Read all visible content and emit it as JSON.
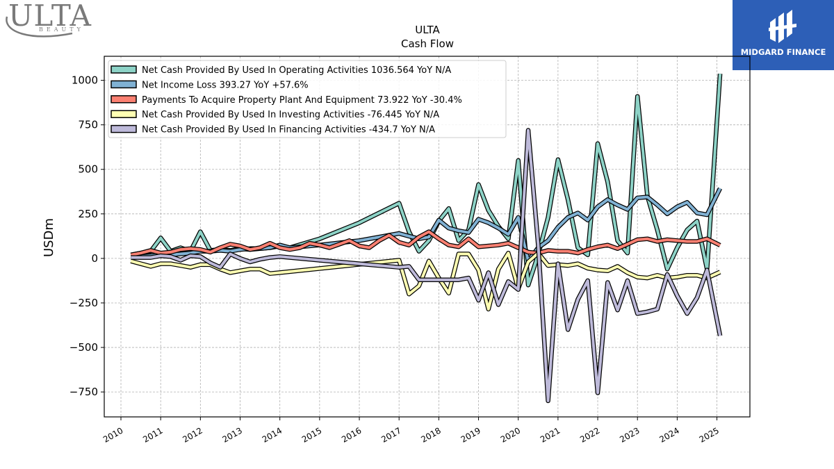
{
  "logos": {
    "left_brand": "ULTA",
    "left_brand_sub": "BEAUTY",
    "right_brand": "MIDGARD FINANCE"
  },
  "colors": {
    "operating": "#8dd3c7",
    "net_income": "#80b1d3",
    "capex": "#fb8072",
    "investing": "#ffffb3",
    "financing": "#bebada",
    "brand_blue": "#2d5fb7"
  },
  "chart_data": {
    "type": "line",
    "title": "ULTA",
    "subtitle": "Cash Flow",
    "xlabel": "",
    "ylabel": "USDm",
    "xlim": [
      2009.58,
      2025.83
    ],
    "ylim": [
      -890,
      1135
    ],
    "yticks": [
      -750,
      -500,
      -250,
      0,
      250,
      500,
      750,
      1000
    ],
    "ytick_labels": [
      "−750",
      "−500",
      "−250",
      "0",
      "250",
      "500",
      "750",
      "1000"
    ],
    "xticks": [
      2010,
      2011,
      2012,
      2013,
      2014,
      2015,
      2016,
      2017,
      2018,
      2019,
      2020,
      2021,
      2022,
      2023,
      2024,
      2025
    ],
    "grid": true,
    "legend_position": "upper-left",
    "series": [
      {
        "name": "Net Cash Provided By Used In Operating Activities  1036.564 YoY N/A",
        "color": "#8dd3c7",
        "points": [
          [
            2010.25,
            20
          ],
          [
            2010.5,
            30
          ],
          [
            2010.75,
            40
          ],
          [
            2011.0,
            115
          ],
          [
            2011.25,
            40
          ],
          [
            2011.5,
            60
          ],
          [
            2011.75,
            40
          ],
          [
            2012.0,
            150
          ],
          [
            2012.25,
            45
          ],
          [
            2012.5,
            50
          ],
          [
            2012.75,
            45
          ],
          [
            2013.0,
            55
          ],
          [
            2013.25,
            50
          ],
          [
            2013.5,
            55
          ],
          [
            2013.75,
            60
          ],
          [
            2014.0,
            70
          ],
          [
            2014.25,
            60
          ],
          [
            2015.0,
            110
          ],
          [
            2016.0,
            200
          ],
          [
            2017.0,
            310
          ],
          [
            2017.25,
            150
          ],
          [
            2017.5,
            40
          ],
          [
            2017.75,
            100
          ],
          [
            2018.0,
            210
          ],
          [
            2018.25,
            280
          ],
          [
            2018.5,
            100
          ],
          [
            2018.75,
            160
          ],
          [
            2019.0,
            415
          ],
          [
            2019.25,
            270
          ],
          [
            2019.5,
            180
          ],
          [
            2019.75,
            110
          ],
          [
            2020.0,
            550
          ],
          [
            2020.25,
            -150
          ],
          [
            2020.5,
            20
          ],
          [
            2020.75,
            230
          ],
          [
            2021.0,
            555
          ],
          [
            2021.25,
            330
          ],
          [
            2021.5,
            60
          ],
          [
            2021.75,
            20
          ],
          [
            2022.0,
            645
          ],
          [
            2022.25,
            430
          ],
          [
            2022.5,
            100
          ],
          [
            2022.75,
            30
          ],
          [
            2023.0,
            910
          ],
          [
            2023.25,
            350
          ],
          [
            2023.5,
            160
          ],
          [
            2023.75,
            -60
          ],
          [
            2024.0,
            60
          ],
          [
            2024.25,
            160
          ],
          [
            2024.5,
            210
          ],
          [
            2024.75,
            -60
          ],
          [
            2025.08,
            1036.564
          ]
        ]
      },
      {
        "name": "Net Income Loss  393.27 YoY +57.6%",
        "color": "#80b1d3",
        "points": [
          [
            2010.25,
            15
          ],
          [
            2010.5,
            10
          ],
          [
            2010.75,
            15
          ],
          [
            2011.0,
            20
          ],
          [
            2011.25,
            20
          ],
          [
            2011.5,
            25
          ],
          [
            2011.75,
            30
          ],
          [
            2012.0,
            40
          ],
          [
            2012.25,
            40
          ],
          [
            2012.5,
            45
          ],
          [
            2012.75,
            40
          ],
          [
            2013.0,
            50
          ],
          [
            2013.25,
            55
          ],
          [
            2013.5,
            55
          ],
          [
            2013.75,
            60
          ],
          [
            2014.0,
            75
          ],
          [
            2014.25,
            60
          ],
          [
            2015.0,
            75
          ],
          [
            2016.0,
            100
          ],
          [
            2017.0,
            140
          ],
          [
            2017.25,
            125
          ],
          [
            2017.5,
            110
          ],
          [
            2017.75,
            120
          ],
          [
            2018.0,
            215
          ],
          [
            2018.25,
            170
          ],
          [
            2018.5,
            155
          ],
          [
            2018.75,
            145
          ],
          [
            2019.0,
            220
          ],
          [
            2019.25,
            200
          ],
          [
            2019.5,
            170
          ],
          [
            2019.75,
            135
          ],
          [
            2020.0,
            230
          ],
          [
            2020.25,
            -15
          ],
          [
            2020.5,
            60
          ],
          [
            2020.75,
            100
          ],
          [
            2021.0,
            175
          ],
          [
            2021.25,
            230
          ],
          [
            2021.5,
            255
          ],
          [
            2021.75,
            215
          ],
          [
            2022.0,
            290
          ],
          [
            2022.25,
            330
          ],
          [
            2022.5,
            300
          ],
          [
            2022.75,
            275
          ],
          [
            2023.0,
            340
          ],
          [
            2023.25,
            345
          ],
          [
            2023.5,
            300
          ],
          [
            2023.75,
            250
          ],
          [
            2024.0,
            290
          ],
          [
            2024.25,
            315
          ],
          [
            2024.5,
            255
          ],
          [
            2024.75,
            245
          ],
          [
            2025.08,
            393.27
          ]
        ]
      },
      {
        "name": "Payments To Acquire Property Plant And Equipment  73.922 YoY -30.4%",
        "color": "#fb8072",
        "points": [
          [
            2010.25,
            20
          ],
          [
            2010.5,
            30
          ],
          [
            2010.75,
            45
          ],
          [
            2011.0,
            30
          ],
          [
            2011.25,
            35
          ],
          [
            2011.5,
            50
          ],
          [
            2011.75,
            55
          ],
          [
            2012.0,
            50
          ],
          [
            2012.25,
            35
          ],
          [
            2012.5,
            60
          ],
          [
            2012.75,
            80
          ],
          [
            2013.0,
            70
          ],
          [
            2013.25,
            50
          ],
          [
            2013.5,
            60
          ],
          [
            2013.75,
            85
          ],
          [
            2014.0,
            60
          ],
          [
            2014.25,
            50
          ],
          [
            2014.5,
            60
          ],
          [
            2014.75,
            85
          ],
          [
            2015.0,
            75
          ],
          [
            2015.25,
            60
          ],
          [
            2015.5,
            80
          ],
          [
            2015.75,
            100
          ],
          [
            2016.0,
            70
          ],
          [
            2016.25,
            60
          ],
          [
            2016.5,
            100
          ],
          [
            2016.75,
            130
          ],
          [
            2017.0,
            90
          ],
          [
            2017.25,
            75
          ],
          [
            2017.5,
            120
          ],
          [
            2017.75,
            150
          ],
          [
            2018.0,
            110
          ],
          [
            2018.25,
            75
          ],
          [
            2018.5,
            65
          ],
          [
            2018.75,
            110
          ],
          [
            2019.0,
            65
          ],
          [
            2019.25,
            70
          ],
          [
            2019.5,
            75
          ],
          [
            2019.75,
            85
          ],
          [
            2020.0,
            60
          ],
          [
            2020.25,
            35
          ],
          [
            2020.5,
            30
          ],
          [
            2020.75,
            45
          ],
          [
            2021.0,
            40
          ],
          [
            2021.25,
            40
          ],
          [
            2021.5,
            30
          ],
          [
            2021.75,
            50
          ],
          [
            2022.0,
            65
          ],
          [
            2022.25,
            75
          ],
          [
            2022.5,
            55
          ],
          [
            2022.75,
            80
          ],
          [
            2023.0,
            105
          ],
          [
            2023.25,
            110
          ],
          [
            2023.5,
            95
          ],
          [
            2023.75,
            105
          ],
          [
            2024.0,
            100
          ],
          [
            2024.25,
            95
          ],
          [
            2024.5,
            95
          ],
          [
            2024.75,
            110
          ],
          [
            2025.08,
            73.922
          ]
        ]
      },
      {
        "name": "Net Cash Provided By Used In Investing Activities  -76.445 YoY N/A",
        "color": "#ffffb3",
        "points": [
          [
            2010.25,
            -15
          ],
          [
            2010.5,
            -30
          ],
          [
            2010.75,
            -45
          ],
          [
            2011.0,
            -30
          ],
          [
            2011.25,
            -30
          ],
          [
            2011.5,
            -40
          ],
          [
            2011.75,
            -50
          ],
          [
            2012.0,
            -35
          ],
          [
            2012.25,
            -35
          ],
          [
            2012.5,
            -60
          ],
          [
            2012.75,
            -80
          ],
          [
            2013.0,
            -70
          ],
          [
            2013.25,
            -60
          ],
          [
            2013.5,
            -60
          ],
          [
            2013.75,
            -85
          ],
          [
            2014.0,
            -80
          ],
          [
            2017.0,
            -10
          ],
          [
            2017.25,
            -200
          ],
          [
            2017.5,
            -155
          ],
          [
            2017.75,
            -15
          ],
          [
            2018.0,
            -110
          ],
          [
            2018.25,
            -195
          ],
          [
            2018.5,
            25
          ],
          [
            2018.75,
            25
          ],
          [
            2019.0,
            -65
          ],
          [
            2019.25,
            -285
          ],
          [
            2019.5,
            -60
          ],
          [
            2019.75,
            30
          ],
          [
            2020.0,
            -170
          ],
          [
            2020.25,
            -20
          ],
          [
            2020.5,
            30
          ],
          [
            2020.75,
            -40
          ],
          [
            2021.0,
            -35
          ],
          [
            2021.25,
            -40
          ],
          [
            2021.5,
            -30
          ],
          [
            2021.75,
            -55
          ],
          [
            2022.0,
            -65
          ],
          [
            2022.25,
            -70
          ],
          [
            2022.5,
            -45
          ],
          [
            2022.75,
            -80
          ],
          [
            2023.0,
            -105
          ],
          [
            2023.25,
            -110
          ],
          [
            2023.5,
            -95
          ],
          [
            2023.75,
            -110
          ],
          [
            2024.0,
            -105
          ],
          [
            2024.25,
            -95
          ],
          [
            2024.5,
            -95
          ],
          [
            2024.75,
            -110
          ],
          [
            2025.08,
            -76.445
          ]
        ]
      },
      {
        "name": "Net Cash Provided By Used In Financing Activities  -434.7 YoY N/A",
        "color": "#bebada",
        "points": [
          [
            2010.25,
            5
          ],
          [
            2010.5,
            5
          ],
          [
            2010.75,
            5
          ],
          [
            2011.0,
            15
          ],
          [
            2011.25,
            10
          ],
          [
            2011.5,
            -10
          ],
          [
            2011.75,
            15
          ],
          [
            2012.0,
            10
          ],
          [
            2012.25,
            -25
          ],
          [
            2012.5,
            -50
          ],
          [
            2012.75,
            25
          ],
          [
            2013.0,
            0
          ],
          [
            2013.25,
            -20
          ],
          [
            2013.5,
            -5
          ],
          [
            2013.75,
            5
          ],
          [
            2014.0,
            10
          ],
          [
            2015.0,
            -10
          ],
          [
            2016.0,
            -30
          ],
          [
            2017.0,
            -50
          ],
          [
            2017.25,
            -45
          ],
          [
            2017.5,
            -120
          ],
          [
            2017.75,
            -120
          ],
          [
            2018.0,
            -120
          ],
          [
            2018.25,
            -120
          ],
          [
            2018.5,
            -120
          ],
          [
            2018.75,
            -110
          ],
          [
            2019.0,
            -235
          ],
          [
            2019.25,
            -80
          ],
          [
            2019.5,
            -260
          ],
          [
            2019.75,
            -130
          ],
          [
            2020.0,
            -175
          ],
          [
            2020.25,
            720
          ],
          [
            2020.5,
            80
          ],
          [
            2020.75,
            -800
          ],
          [
            2021.0,
            -30
          ],
          [
            2021.25,
            -400
          ],
          [
            2021.5,
            -230
          ],
          [
            2021.75,
            -125
          ],
          [
            2022.0,
            -755
          ],
          [
            2022.25,
            -135
          ],
          [
            2022.5,
            -290
          ],
          [
            2022.75,
            -125
          ],
          [
            2023.0,
            -310
          ],
          [
            2023.25,
            -300
          ],
          [
            2023.5,
            -285
          ],
          [
            2023.75,
            -90
          ],
          [
            2024.0,
            -210
          ],
          [
            2024.25,
            -310
          ],
          [
            2024.5,
            -220
          ],
          [
            2024.75,
            -65
          ],
          [
            2025.08,
            -434.7
          ]
        ]
      }
    ]
  }
}
